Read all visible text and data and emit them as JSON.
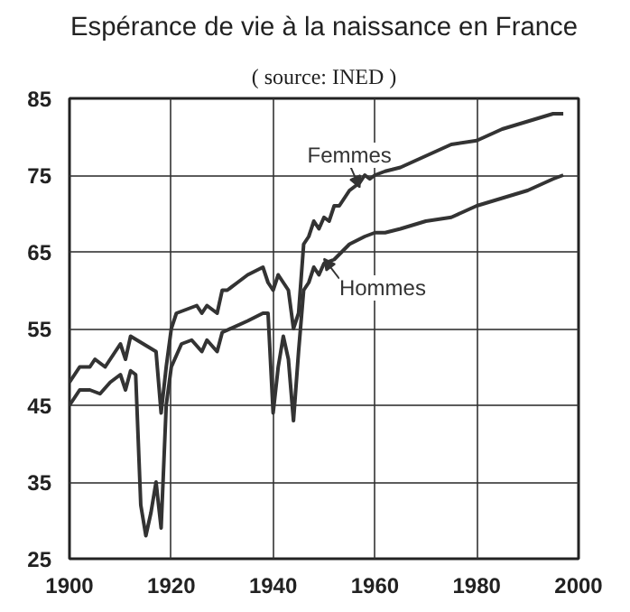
{
  "chart_data": {
    "type": "line",
    "title": "Espérance de vie à la naissance en France",
    "subtitle": "( source: INED )",
    "series": [
      {
        "name": "Femmes",
        "color": "#333333",
        "x": [
          1900,
          1902,
          1904,
          1905,
          1907,
          1910,
          1911,
          1912,
          1917,
          1918,
          1919,
          1920,
          1921,
          1923,
          1925,
          1926,
          1927,
          1929,
          1930,
          1931,
          1933,
          1935,
          1938,
          1939,
          1940,
          1941,
          1942,
          1943,
          1944,
          1945,
          1946,
          1947,
          1948,
          1949,
          1950,
          1951,
          1952,
          1953,
          1954,
          1955,
          1956,
          1957,
          1958,
          1959,
          1960,
          1962,
          1965,
          1970,
          1975,
          1980,
          1985,
          1990,
          1995,
          1997
        ],
        "values": [
          48,
          50,
          50,
          51,
          50,
          53,
          51,
          54,
          52,
          44,
          50,
          55,
          57,
          57.5,
          58,
          57,
          58,
          57,
          60,
          60,
          61,
          62,
          63,
          61,
          60,
          62,
          61,
          60,
          55,
          57,
          66,
          67,
          69,
          68,
          69.5,
          69,
          71,
          71,
          72,
          73,
          73.5,
          74,
          75,
          74.5,
          75,
          75.5,
          76,
          77.5,
          79,
          79.5,
          81,
          82,
          83,
          83
        ]
      },
      {
        "name": "Hommes",
        "color": "#333333",
        "x": [
          1900,
          1902,
          1904,
          1906,
          1908,
          1910,
          1911,
          1912,
          1913,
          1914,
          1915,
          1916,
          1917,
          1918,
          1919,
          1920,
          1922,
          1924,
          1926,
          1927,
          1929,
          1930,
          1935,
          1938,
          1939,
          1940,
          1941,
          1942,
          1943,
          1944,
          1945,
          1946,
          1947,
          1948,
          1949,
          1950,
          1952,
          1955,
          1958,
          1960,
          1962,
          1965,
          1970,
          1975,
          1980,
          1985,
          1990,
          1995,
          1997
        ],
        "values": [
          45,
          47,
          47,
          46.5,
          48,
          49,
          47,
          49.5,
          49,
          32,
          28,
          31,
          35,
          29,
          45,
          50,
          53,
          53.5,
          52,
          53.5,
          52,
          54.5,
          56,
          57,
          57,
          44,
          50,
          54,
          51,
          43,
          52,
          60,
          61,
          63,
          62,
          63.5,
          64,
          66,
          67,
          67.5,
          67.5,
          68,
          69,
          69.5,
          71,
          72,
          73,
          74.5,
          75
        ]
      }
    ],
    "xlim": [
      1900,
      2000
    ],
    "xticks": [
      1900,
      1920,
      1940,
      1960,
      1980,
      2000
    ],
    "ylim": [
      25,
      85
    ],
    "yticks": [
      25,
      35,
      45,
      55,
      65,
      75,
      85
    ],
    "grid": true
  }
}
